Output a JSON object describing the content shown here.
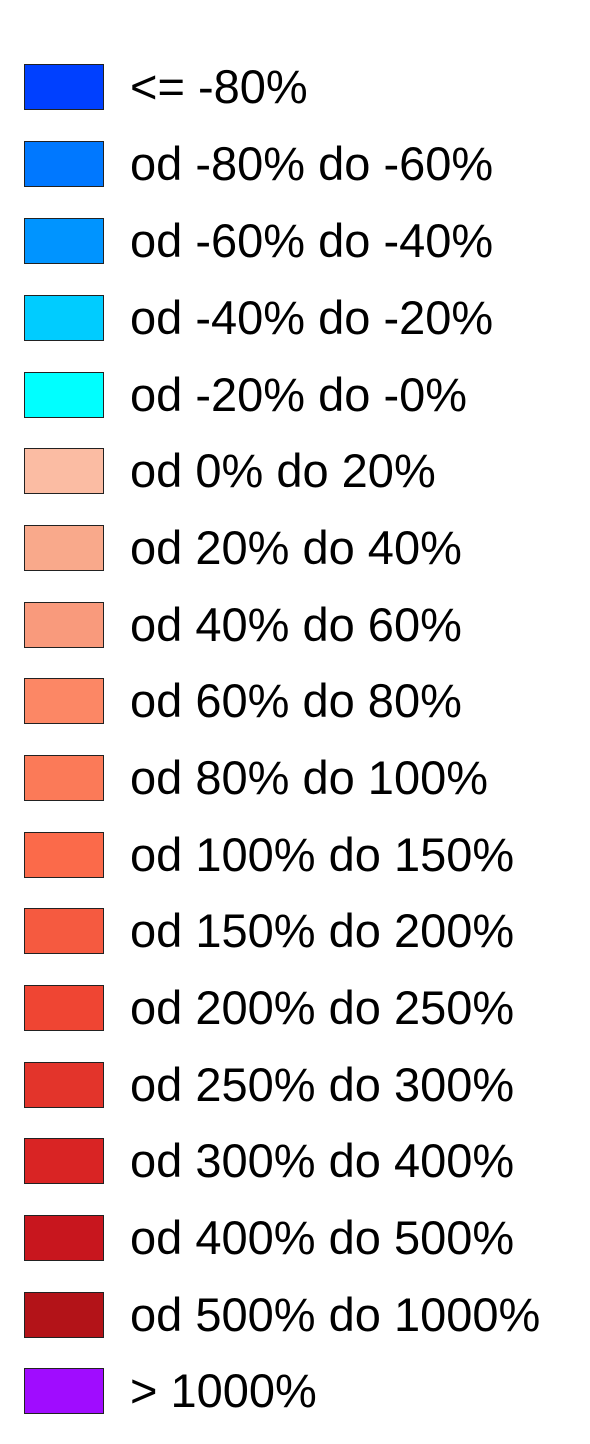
{
  "legend": {
    "items": [
      {
        "label": "<= -80%",
        "color": "#0040ff"
      },
      {
        "label": "od -80% do -60%",
        "color": "#0078ff"
      },
      {
        "label": "od -60% do -40%",
        "color": "#0094ff"
      },
      {
        "label": "od -40% do -20%",
        "color": "#00ccff"
      },
      {
        "label": "od -20% do -0%",
        "color": "#00ffff"
      },
      {
        "label": "od 0% do 20%",
        "color": "#fbbca3"
      },
      {
        "label": "od 20% do 40%",
        "color": "#f9a98b"
      },
      {
        "label": "od 40% do 60%",
        "color": "#f99a7c"
      },
      {
        "label": "od 60% do 80%",
        "color": "#fc8765"
      },
      {
        "label": "od 80% do 100%",
        "color": "#fb7a58"
      },
      {
        "label": "od 100% do 150%",
        "color": "#fb6a4a"
      },
      {
        "label": "od 150% do 200%",
        "color": "#f55a40"
      },
      {
        "label": "od 200% do 250%",
        "color": "#ef4533"
      },
      {
        "label": "od 250% do 300%",
        "color": "#e3342b"
      },
      {
        "label": "od 300% do 400%",
        "color": "#d92424"
      },
      {
        "label": "od 400% do 500%",
        "color": "#c8161e"
      },
      {
        "label": "od 500% do 1000%",
        "color": "#b31318"
      },
      {
        "label": "> 1000%",
        "color": "#a00cff"
      }
    ]
  }
}
